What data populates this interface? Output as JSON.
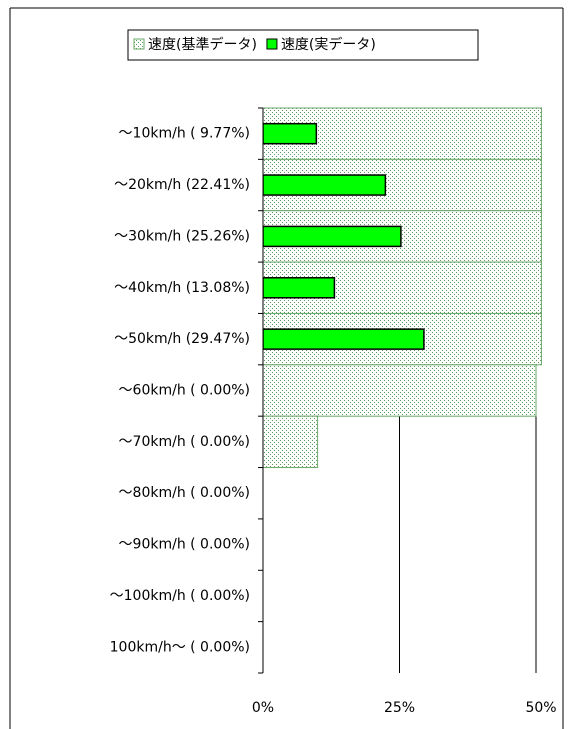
{
  "chart_data": {
    "type": "barh",
    "categories": [
      "～10km/h ( 9.77%)",
      "～20km/h (22.41%)",
      "～30km/h (25.26%)",
      "～40km/h (13.08%)",
      "～50km/h (29.47%)",
      "～60km/h ( 0.00%)",
      "～70km/h ( 0.00%)",
      "～80km/h ( 0.00%)",
      "～90km/h ( 0.00%)",
      "～100km/h ( 0.00%)",
      "100km/h～ ( 0.00%)"
    ],
    "series": [
      {
        "name": "速度(基準データ)",
        "color": "#6aa86a",
        "values": [
          51,
          51,
          51,
          51,
          51,
          50,
          10,
          0,
          0,
          0,
          0
        ]
      },
      {
        "name": "速度(実データ)",
        "color": "#00ff00",
        "values": [
          9.77,
          22.41,
          25.26,
          13.08,
          29.47,
          0,
          0,
          0,
          0,
          0,
          0
        ]
      }
    ],
    "xlim": [
      0,
      51
    ],
    "xticks": [
      {
        "value": 0,
        "label": "0%"
      },
      {
        "value": 25,
        "label": "25%"
      },
      {
        "value": 50,
        "label": "50%"
      }
    ],
    "grid": true
  }
}
